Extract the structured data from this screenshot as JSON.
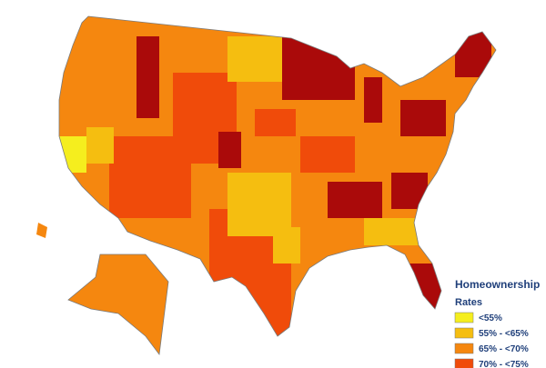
{
  "legend": {
    "title": "Homeownership",
    "subtitle": "Rates",
    "items": [
      {
        "label": "<55%",
        "color": "#f5ee1e"
      },
      {
        "label": "55% - <65%",
        "color": "#f5be10"
      },
      {
        "label": "65% - <70%",
        "color": "#f5870f"
      },
      {
        "label": "70% - <75%",
        "color": "#f04b0a"
      }
    ]
  }
}
